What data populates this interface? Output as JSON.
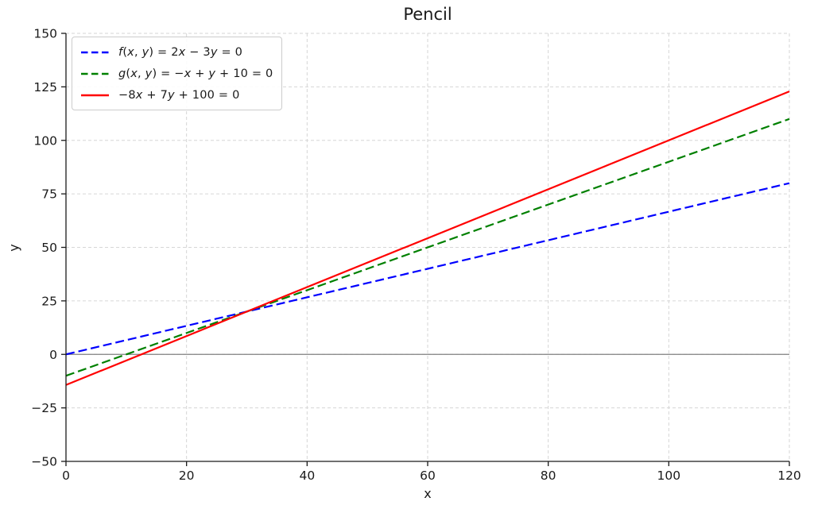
{
  "chart_data": {
    "type": "line",
    "title": "Pencil",
    "xlabel": "x",
    "ylabel": "y",
    "xlim": [
      0,
      120
    ],
    "ylim": [
      -50,
      150
    ],
    "xticks": [
      0,
      20,
      40,
      60,
      80,
      100,
      120
    ],
    "yticks": [
      -50,
      -25,
      0,
      25,
      50,
      75,
      100,
      125,
      150
    ],
    "grid": true,
    "grid_style": "dashed",
    "legend_position": "upper-left",
    "axhline_y": 0,
    "colors": {
      "grid": "#d6d6d6",
      "axhline": "#808080",
      "spine": "#1a1a1a",
      "text": "#1a1a1a"
    },
    "series": [
      {
        "label": "f(x, y) = 2x − 3y = 0",
        "color": "#0000ff",
        "style": "dashed",
        "equation": "2x - 3y = 0",
        "points": [
          [
            0,
            0
          ],
          [
            120,
            80
          ]
        ]
      },
      {
        "label": "g(x, y) = −x + y + 10 = 0",
        "color": "#008000",
        "style": "dashed",
        "equation": "-x + y + 10 = 0",
        "points": [
          [
            0,
            -10
          ],
          [
            120,
            110
          ]
        ]
      },
      {
        "label": "−8x + 7y + 100 = 0",
        "color": "#ff0000",
        "style": "solid",
        "equation": "-8x + 7y + 100 = 0",
        "points": [
          [
            0,
            -14.2857
          ],
          [
            120,
            122.8571
          ]
        ]
      }
    ]
  }
}
